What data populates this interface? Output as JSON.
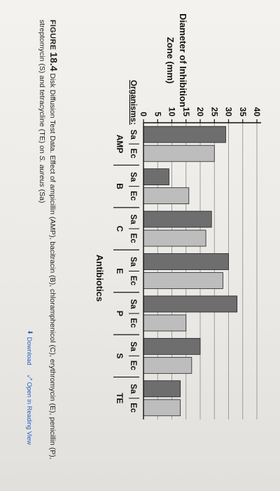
{
  "chart_data": {
    "type": "bar",
    "ylabel_line1": "Diameter of Inhibition",
    "ylabel_line2": "Zone (mm)",
    "xlabel": "Antibiotics",
    "organisms_label": "Organisms:",
    "organisms": [
      "Sa",
      "Ec"
    ],
    "categories": [
      "AMP",
      "B",
      "C",
      "E",
      "P",
      "S",
      "TE"
    ],
    "yticks": [
      0,
      5,
      10,
      15,
      20,
      25,
      30,
      35,
      40
    ],
    "ylim": [
      0,
      40
    ],
    "series": [
      {
        "name": "Sa",
        "values": [
          29,
          9,
          24,
          30,
          33,
          20,
          13
        ],
        "color": "#6e6e6e"
      },
      {
        "name": "Ec",
        "values": [
          25,
          16,
          22,
          28,
          15,
          17,
          13
        ],
        "color": "#bdbdbd"
      }
    ],
    "grid": true
  },
  "caption": {
    "figure_prefix": "FIGURE",
    "figure_number": "18.4",
    "part1": " Disk Diffusion Test Data. Effect of ampicillin (AMP), bacitracin (B), chloramphenicol (C), erythromycin (E), penicillin (P), streptomycin (S) and tetracycline (TE) on ",
    "species": "S. aureus",
    "part2": " (Sa)"
  },
  "toolbar": {
    "download_label": "Download",
    "reading_view_label": "Open in Reading View"
  }
}
